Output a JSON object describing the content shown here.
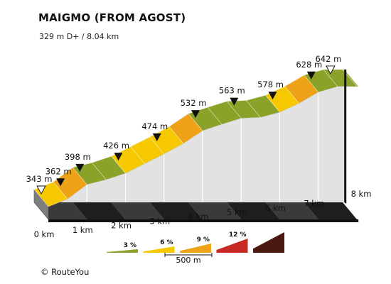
{
  "title": "MAIGMO (FROM AGOST)",
  "subtitle": "329 m D+ / 8.04 km",
  "credit": "© RouteYou",
  "chart_data": {
    "type": "area",
    "title": "MAIGMO (FROM AGOST)",
    "subtitle": "329 m D+ / 8.04 km",
    "x_unit": "km",
    "y_unit": "m",
    "distance_km": [
      0,
      0.5,
      1,
      1.5,
      2,
      2.5,
      3,
      3.5,
      4,
      4.5,
      5,
      5.5,
      6,
      6.5,
      7,
      7.5,
      8,
      8.04
    ],
    "elevation_m": [
      343,
      362,
      398,
      410,
      426,
      450,
      474,
      500,
      532,
      548,
      563,
      565,
      578,
      600,
      628,
      642,
      642,
      642
    ],
    "segment_gradient_pct": [
      4,
      7,
      2,
      3,
      5,
      5,
      5,
      6,
      3,
      3,
      1,
      3,
      4,
      6,
      3
    ],
    "km_ticks": [
      "0 km",
      "1 km",
      "2 km",
      "3 km",
      "4 km",
      "5 km",
      "6 km",
      "7 km",
      "8 km"
    ],
    "elevation_markers": [
      {
        "km": 0,
        "label": "343 m",
        "marker": "open"
      },
      {
        "km": 0.5,
        "label": "362 m",
        "marker": "filled"
      },
      {
        "km": 1,
        "label": "398 m",
        "marker": "filled"
      },
      {
        "km": 2,
        "label": "426 m",
        "marker": "filled"
      },
      {
        "km": 3,
        "label": "474 m",
        "marker": "filled"
      },
      {
        "km": 4,
        "label": "532 m",
        "marker": "filled"
      },
      {
        "km": 5,
        "label": "563 m",
        "marker": "filled"
      },
      {
        "km": 6,
        "label": "578 m",
        "marker": "filled"
      },
      {
        "km": 7,
        "label": "628 m",
        "marker": "filled"
      },
      {
        "km": 7.5,
        "label": "642 m",
        "marker": "open"
      }
    ],
    "legend": {
      "scale_label": "500 m",
      "items": [
        {
          "label": "3 %",
          "color": "#8aa227"
        },
        {
          "label": "6 %",
          "color": "#f5c800"
        },
        {
          "label": "9 %",
          "color": "#eda218"
        },
        {
          "label": "12 %",
          "color": "#c72a24"
        },
        {
          "label": "",
          "color": "#4c1910"
        }
      ]
    },
    "colors": {
      "green": "#8aa227",
      "yellow": "#f5c800",
      "orange": "#eda218",
      "red": "#c72a24",
      "maroon": "#4c1910",
      "wall": "#e2e2e2",
      "base": "#2b2b2b"
    }
  }
}
